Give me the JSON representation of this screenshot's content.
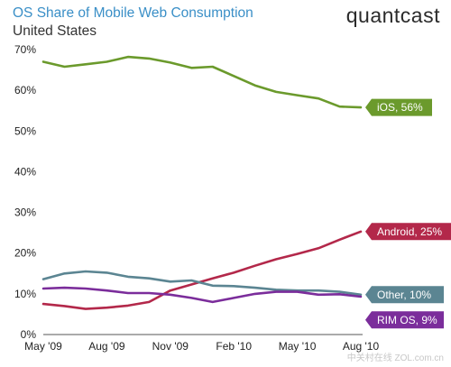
{
  "header": {
    "title": "OS Share of Mobile Web Consumption",
    "subtitle": "United States",
    "brand": "quantcast",
    "watermark": "中关村在线 ZOL.com.cn"
  },
  "chart_data": {
    "type": "line",
    "title": "OS Share of Mobile Web Consumption",
    "subtitle": "United States",
    "xlabel": "",
    "ylabel": "",
    "x": [
      "May '09",
      "Jun '09",
      "Jul '09",
      "Aug '09",
      "Sep '09",
      "Oct '09",
      "Nov '09",
      "Dec '09",
      "Jan '10",
      "Feb '10",
      "Mar '10",
      "Apr '10",
      "May '10",
      "Jun '10",
      "Jul '10",
      "Aug '10"
    ],
    "x_tick_labels": [
      "May '09",
      "Aug '09",
      "Nov '09",
      "Feb '10",
      "May '10",
      "Aug '10"
    ],
    "x_tick_positions": [
      0,
      3,
      6,
      9,
      12,
      15
    ],
    "ylim": [
      0,
      70
    ],
    "y_ticks": [
      0,
      10,
      20,
      30,
      40,
      50,
      60,
      70
    ],
    "y_tick_labels": [
      "0%",
      "10%",
      "20%",
      "30%",
      "40%",
      "50%",
      "60%",
      "70%"
    ],
    "grid": false,
    "legend": "end-of-line labels",
    "series": [
      {
        "name": "iOS",
        "end_label": "iOS, 56%",
        "color": "#6b9a2c",
        "values": [
          67,
          65.8,
          66.4,
          67,
          68.2,
          67.8,
          66.8,
          65.5,
          65.8,
          63.5,
          61.2,
          59.6,
          58.8,
          58,
          56,
          55.8
        ]
      },
      {
        "name": "Android",
        "end_label": "Android, 25%",
        "color": "#b3284a",
        "values": [
          7.5,
          7,
          6.3,
          6.6,
          7.1,
          8,
          10.8,
          12.3,
          13.8,
          15.2,
          16.9,
          18.5,
          19.8,
          21.2,
          23.3,
          25.3
        ]
      },
      {
        "name": "Other",
        "end_label": "Other, 10%",
        "color": "#5b8592",
        "values": [
          13.6,
          15,
          15.5,
          15.2,
          14.2,
          13.8,
          13,
          13.3,
          12,
          11.9,
          11.5,
          11,
          10.8,
          10.8,
          10.5,
          9.8
        ]
      },
      {
        "name": "RIM OS",
        "end_label": "RIM OS, 9%",
        "color": "#7b2d9b",
        "values": [
          11.3,
          11.5,
          11.3,
          10.8,
          10.2,
          10.2,
          9.8,
          9,
          8,
          9,
          10,
          10.5,
          10.5,
          9.8,
          9.9,
          9.3
        ]
      }
    ]
  }
}
